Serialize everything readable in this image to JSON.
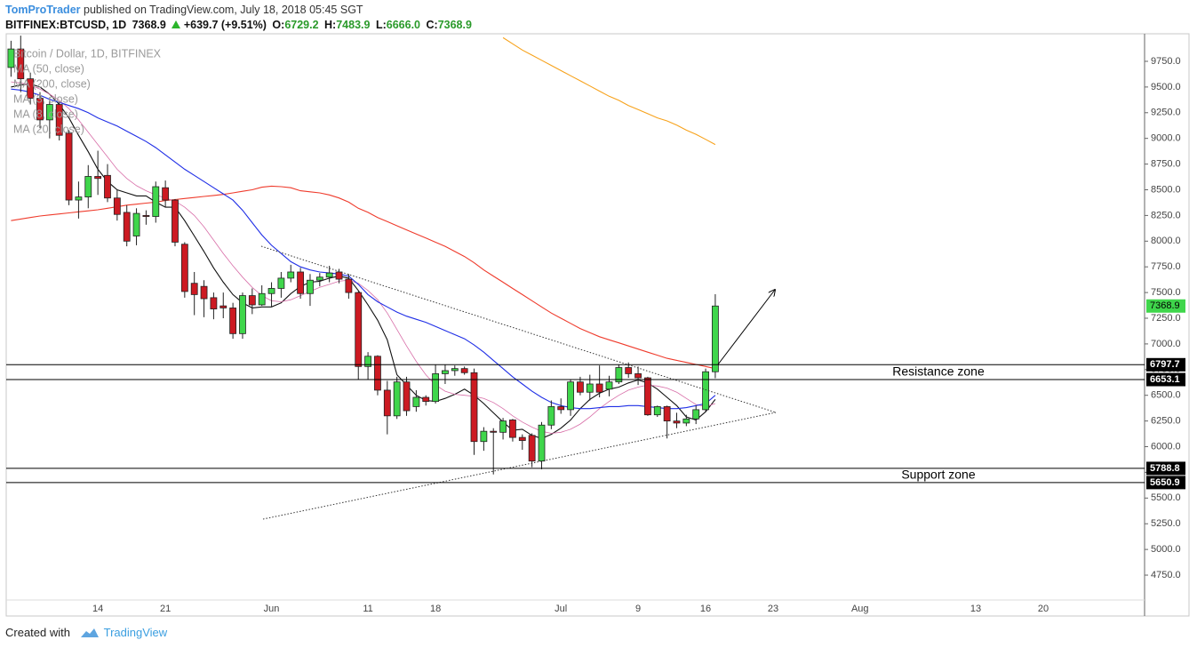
{
  "header": {
    "author": "TomProTrader",
    "published": "published on TradingView.com, July 18, 2018 05:45 SGT",
    "symbol": "BITFINEX:BTCUSD, 1D",
    "last": "7368.9",
    "change": "+639.7 (+9.51%)",
    "ohlc": [
      {
        "label": "O:",
        "value": "6729.2"
      },
      {
        "label": "H:",
        "value": "7483.9"
      },
      {
        "label": "L:",
        "value": "6666.0"
      },
      {
        "label": "C:",
        "value": "7368.9"
      }
    ]
  },
  "footer": {
    "created": "Created with",
    "brand": "TradingView"
  },
  "chart_data": {
    "type": "candlestick",
    "title": "Bitcoin / Dollar, 1D, BITFINEX",
    "categories": [
      null,
      null,
      null,
      null,
      null,
      null,
      null,
      null,
      null,
      "14",
      null,
      null,
      null,
      null,
      null,
      null,
      "21",
      null,
      null,
      null,
      null,
      null,
      null,
      null,
      null,
      null,
      null,
      "Jun",
      null,
      null,
      null,
      null,
      null,
      null,
      null,
      null,
      null,
      "11",
      null,
      null,
      null,
      null,
      null,
      null,
      "18",
      null,
      null,
      null,
      null,
      null,
      null,
      null,
      null,
      null,
      null,
      null,
      null,
      "Jul",
      null,
      null,
      null,
      null,
      null,
      null,
      null,
      "9",
      null,
      null,
      null,
      null,
      null,
      null,
      "16",
      null,
      null,
      null,
      null,
      null,
      null,
      "23",
      null,
      null,
      null,
      null,
      null,
      null,
      null,
      null,
      "Aug",
      null,
      null,
      null,
      null,
      null,
      null,
      null,
      null,
      null,
      null,
      null,
      "13",
      null,
      null,
      null,
      null,
      null,
      null,
      "20",
      null,
      null,
      null,
      null,
      null,
      null,
      null,
      null,
      null,
      null
    ],
    "open": [
      9690,
      9870,
      9580,
      9390,
      9180,
      9330,
      9050,
      8400,
      8430,
      8630,
      8640,
      8420,
      8280,
      8050,
      8250,
      8240,
      8520,
      8400,
      7970,
      7590,
      7560,
      7450,
      7370,
      7350,
      7100,
      7470,
      7380,
      7490,
      7540,
      7640,
      7700,
      7490,
      7620,
      7650,
      7700,
      7630,
      7500,
      6780,
      6880,
      6550,
      6300,
      6630,
      6390,
      6480,
      6440,
      6710,
      6740,
      6760,
      6720,
      6050,
      6150,
      6140,
      6260,
      6090,
      6110,
      5860,
      6210,
      6390,
      6360,
      6630,
      6530,
      6610,
      6560,
      6630,
      6770,
      6710,
      6670,
      6310,
      6390,
      6250,
      6230,
      6270,
      6360,
      6729.2,
      null,
      null,
      null,
      null,
      null,
      null,
      null,
      null,
      null,
      null,
      null,
      null,
      null,
      null,
      null,
      null,
      null,
      null,
      null,
      null,
      null,
      null,
      null,
      null,
      null,
      null,
      null,
      null,
      null,
      null,
      null,
      null,
      null,
      null,
      null,
      null,
      null,
      null,
      null,
      null,
      null,
      null,
      null,
      null
    ],
    "high": [
      9950,
      10000,
      9640,
      9450,
      9400,
      9360,
      9080,
      8580,
      8740,
      8880,
      8750,
      8500,
      8350,
      8320,
      8300,
      8580,
      8590,
      8410,
      7990,
      7700,
      7620,
      7500,
      7500,
      7400,
      7500,
      7540,
      7570,
      7600,
      7700,
      7770,
      7740,
      7680,
      7690,
      7760,
      7730,
      7680,
      7510,
      6920,
      6890,
      6640,
      6680,
      6680,
      6550,
      6500,
      6800,
      6800,
      6790,
      6780,
      6760,
      6190,
      6180,
      6280,
      6270,
      6120,
      6130,
      6240,
      6450,
      6470,
      6650,
      6680,
      6700,
      6790,
      6690,
      6800,
      6820,
      6780,
      6680,
      6400,
      6400,
      6330,
      6310,
      6400,
      6760,
      7483.9,
      null,
      null,
      null,
      null,
      null,
      null,
      null,
      null,
      null,
      null,
      null,
      null,
      null,
      null,
      null,
      null,
      null,
      null,
      null,
      null,
      null,
      null,
      null,
      null,
      null,
      null,
      null,
      null,
      null,
      null,
      null,
      null,
      null,
      null,
      null,
      null,
      null,
      null,
      null,
      null,
      null,
      null,
      null,
      null
    ],
    "low": [
      9600,
      9450,
      9330,
      9100,
      9000,
      8980,
      8350,
      8220,
      8320,
      8450,
      8380,
      8200,
      7950,
      7960,
      8160,
      8180,
      8330,
      7950,
      7450,
      7280,
      7260,
      7240,
      7250,
      7050,
      7050,
      7290,
      7370,
      7360,
      7450,
      7600,
      7440,
      7370,
      7560,
      7600,
      7590,
      7440,
      6650,
      6650,
      6500,
      6120,
      6270,
      6300,
      6340,
      6400,
      6420,
      6610,
      6690,
      6700,
      5920,
      5960,
      5730,
      6070,
      6050,
      5970,
      5800,
      5780,
      6170,
      6320,
      6300,
      6500,
      6450,
      6480,
      6490,
      6610,
      6670,
      6600,
      6300,
      6290,
      6080,
      6180,
      6200,
      6220,
      6340,
      6666.0,
      null,
      null,
      null,
      null,
      null,
      null,
      null,
      null,
      null,
      null,
      null,
      null,
      null,
      null,
      null,
      null,
      null,
      null,
      null,
      null,
      null,
      null,
      null,
      null,
      null,
      null,
      null,
      null,
      null,
      null,
      null,
      null,
      null,
      null,
      null,
      null,
      null,
      null,
      null,
      null,
      null,
      null,
      null,
      null
    ],
    "close": [
      9870,
      9580,
      9390,
      9180,
      9330,
      9030,
      8400,
      8430,
      8630,
      8610,
      8420,
      8260,
      8000,
      8270,
      8240,
      8530,
      8400,
      7990,
      7510,
      7480,
      7440,
      7340,
      7350,
      7100,
      7470,
      7380,
      7490,
      7540,
      7640,
      7700,
      7490,
      7620,
      7650,
      7690,
      7630,
      7500,
      6780,
      6880,
      6550,
      6300,
      6630,
      6350,
      6480,
      6440,
      6710,
      6740,
      6760,
      6720,
      6050,
      6150,
      6140,
      6250,
      6090,
      6060,
      5860,
      6210,
      6390,
      6360,
      6630,
      6530,
      6610,
      6530,
      6630,
      6770,
      6710,
      6670,
      6310,
      6390,
      6250,
      6230,
      6270,
      6360,
      6729.2,
      7368.9,
      null,
      null,
      null,
      null,
      null,
      null,
      null,
      null,
      null,
      null,
      null,
      null,
      null,
      null,
      null,
      null,
      null,
      null,
      null,
      null,
      null,
      null,
      null,
      null,
      null,
      null,
      null,
      null,
      null,
      null,
      null,
      null,
      null,
      null,
      null,
      null,
      null,
      null,
      null,
      null,
      null,
      null,
      null,
      null
    ],
    "colors": {
      "up": "#3fd64b",
      "down": "#cc1a22"
    },
    "series": [
      {
        "name": "MA (50, close)",
        "color": "#ef3b2c",
        "values": [
          8200,
          8215,
          8230,
          8245,
          8255,
          8265,
          8275,
          8285,
          8295,
          8305,
          8320,
          8335,
          8350,
          8360,
          8370,
          8380,
          8395,
          8405,
          8415,
          8425,
          8435,
          8445,
          8455,
          8470,
          8485,
          8500,
          8525,
          8535,
          8530,
          8520,
          8490,
          8480,
          8470,
          8450,
          8420,
          8380,
          8320,
          8280,
          8230,
          8190,
          8150,
          8110,
          8070,
          8030,
          7990,
          7950,
          7900,
          7850,
          7790,
          7720,
          7660,
          7600,
          7540,
          7480,
          7420,
          7360,
          7300,
          7250,
          7200,
          7150,
          7110,
          7070,
          7040,
          7010,
          6980,
          6950,
          6920,
          6890,
          6860,
          6840,
          6820,
          6800,
          6780,
          6760,
          null,
          null,
          null,
          null,
          null,
          null,
          null,
          null,
          null,
          null,
          null,
          null,
          null,
          null,
          null,
          null,
          null,
          null,
          null,
          null,
          null,
          null,
          null,
          null,
          null,
          null,
          null,
          null,
          null,
          null,
          null,
          null,
          null,
          null,
          null,
          null,
          null,
          null,
          null,
          null,
          null,
          null,
          null,
          null
        ]
      },
      {
        "name": "MA (200, close)",
        "color": "#f7a21b",
        "values": [
          null,
          null,
          null,
          null,
          null,
          null,
          null,
          null,
          null,
          null,
          null,
          null,
          null,
          null,
          null,
          null,
          null,
          null,
          null,
          null,
          null,
          null,
          null,
          null,
          null,
          null,
          null,
          null,
          null,
          null,
          null,
          null,
          null,
          null,
          null,
          null,
          null,
          null,
          null,
          null,
          null,
          null,
          null,
          null,
          null,
          null,
          null,
          null,
          null,
          null,
          null,
          9980,
          9920,
          9860,
          9810,
          9760,
          9710,
          9660,
          9610,
          9560,
          9510,
          9460,
          9410,
          9370,
          9320,
          9280,
          9240,
          9200,
          9170,
          9130,
          9080,
          9040,
          8990,
          8940,
          null,
          null,
          null,
          null,
          null,
          null,
          null,
          null,
          null,
          null,
          null,
          null,
          null,
          null,
          null,
          null,
          null,
          null,
          null,
          null,
          null,
          null,
          null,
          null,
          null,
          null,
          null,
          null,
          null,
          null,
          null,
          null,
          null,
          null,
          null,
          null,
          null,
          null,
          null,
          null,
          null,
          null,
          null,
          null
        ]
      },
      {
        "name": "MA (3, close)",
        "color": "#111111",
        "values": [
          9500,
          9520,
          9530,
          9500,
          9430,
          9330,
          9200,
          9030,
          8870,
          8700,
          8580,
          8500,
          8470,
          8440,
          8440,
          8380,
          8330,
          8330,
          8200,
          8050,
          7900,
          7740,
          7600,
          7480,
          7400,
          7350,
          7360,
          7360,
          7400,
          7490,
          7560,
          7600,
          7610,
          7640,
          7660,
          7640,
          7520,
          7380,
          7230,
          7040,
          6700,
          6600,
          6500,
          6450,
          6440,
          6470,
          6510,
          6560,
          6500,
          6420,
          6330,
          6240,
          6160,
          6170,
          6110,
          6080,
          6120,
          6180,
          6260,
          6370,
          6460,
          6520,
          6560,
          6580,
          6620,
          6650,
          6620,
          6560,
          6480,
          6400,
          6290,
          6260,
          6340,
          6460,
          null,
          null,
          null,
          null,
          null,
          null,
          null,
          null,
          null,
          null,
          null,
          null,
          null,
          null,
          null,
          null,
          null,
          null,
          null,
          null,
          null,
          null,
          null,
          null,
          null,
          null,
          null,
          null,
          null,
          null,
          null,
          null,
          null,
          null,
          null,
          null,
          null,
          null,
          null,
          null,
          null,
          null,
          null,
          null
        ]
      },
      {
        "name": "MA (8, close)",
        "color": "#d86ea8",
        "values": [
          9550,
          9540,
          9520,
          9480,
          9430,
          9370,
          9290,
          9180,
          9060,
          8940,
          8820,
          8700,
          8610,
          8540,
          8490,
          8450,
          8420,
          8390,
          8330,
          8250,
          8140,
          8010,
          7880,
          7760,
          7650,
          7550,
          7470,
          7420,
          7410,
          7430,
          7470,
          7510,
          7550,
          7580,
          7610,
          7620,
          7590,
          7520,
          7430,
          7300,
          7140,
          6980,
          6830,
          6700,
          6600,
          6540,
          6510,
          6500,
          6490,
          6470,
          6430,
          6370,
          6300,
          6240,
          6190,
          6150,
          6130,
          6140,
          6170,
          6220,
          6290,
          6370,
          6440,
          6500,
          6550,
          6580,
          6600,
          6590,
          6570,
          6530,
          6470,
          6410,
          6390,
          6420,
          null,
          null,
          null,
          null,
          null,
          null,
          null,
          null,
          null,
          null,
          null,
          null,
          null,
          null,
          null,
          null,
          null,
          null,
          null,
          null,
          null,
          null,
          null,
          null,
          null,
          null,
          null,
          null,
          null,
          null,
          null,
          null,
          null,
          null,
          null,
          null,
          null,
          null,
          null,
          null,
          null,
          null,
          null,
          null
        ]
      },
      {
        "name": "MA (20, close)",
        "color": "#1f2ee6",
        "values": [
          9480,
          9470,
          9450,
          9420,
          9380,
          9350,
          9320,
          9290,
          9250,
          9200,
          9160,
          9120,
          9070,
          9020,
          8970,
          8910,
          8840,
          8770,
          8700,
          8640,
          8580,
          8520,
          8460,
          8400,
          8300,
          8180,
          8060,
          7960,
          7880,
          7800,
          7750,
          7720,
          7700,
          7690,
          7680,
          7660,
          7580,
          7480,
          7410,
          7360,
          7310,
          7270,
          7240,
          7210,
          7170,
          7130,
          7090,
          7050,
          6990,
          6920,
          6840,
          6760,
          6680,
          6610,
          6540,
          6480,
          6430,
          6400,
          6380,
          6370,
          6370,
          6380,
          6390,
          6390,
          6400,
          6400,
          6390,
          6380,
          6370,
          6370,
          6380,
          6400,
          6420,
          6500,
          null,
          null,
          null,
          null,
          null,
          null,
          null,
          null,
          null,
          null,
          null,
          null,
          null,
          null,
          null,
          null,
          null,
          null,
          null,
          null,
          null,
          null,
          null,
          null,
          null,
          null,
          null,
          null,
          null,
          null,
          null,
          null,
          null,
          null,
          null,
          null,
          null,
          null,
          null,
          null,
          null,
          null,
          null,
          null
        ]
      }
    ],
    "ylim": [
      4508,
      10018
    ],
    "yticks": [
      {
        "value": 4750,
        "label": "4750.0"
      },
      {
        "value": 5000,
        "label": "5000.0"
      },
      {
        "value": 5250,
        "label": "5250.0"
      },
      {
        "value": 5500,
        "label": "5500.0"
      },
      {
        "value": 5750,
        "label": "5750.0"
      },
      {
        "value": 6000,
        "label": "6000.0"
      },
      {
        "value": 6250,
        "label": "6250.0"
      },
      {
        "value": 6500,
        "label": "6500.0"
      },
      {
        "value": 6750,
        "label": "6750.0"
      },
      {
        "value": 7000,
        "label": "7000.0"
      },
      {
        "value": 7250,
        "label": "7250.0"
      },
      {
        "value": 7500,
        "label": "7500.0"
      },
      {
        "value": 7750,
        "label": "7750.0"
      },
      {
        "value": 8000,
        "label": "8000.0"
      },
      {
        "value": 8250,
        "label": "8250.0"
      },
      {
        "value": 8500,
        "label": "8500.0"
      },
      {
        "value": 8750,
        "label": "8750.0"
      },
      {
        "value": 9000,
        "label": "9000.0"
      },
      {
        "value": 9250,
        "label": "9250.0"
      },
      {
        "value": 9500,
        "label": "9500.0"
      },
      {
        "value": 9750,
        "label": "9750.0"
      }
    ],
    "grid": false,
    "levels": [
      6797.7,
      6653.1,
      5788.8,
      5650.9
    ],
    "annotations": [
      "Resistance zone",
      "Support zone"
    ]
  }
}
